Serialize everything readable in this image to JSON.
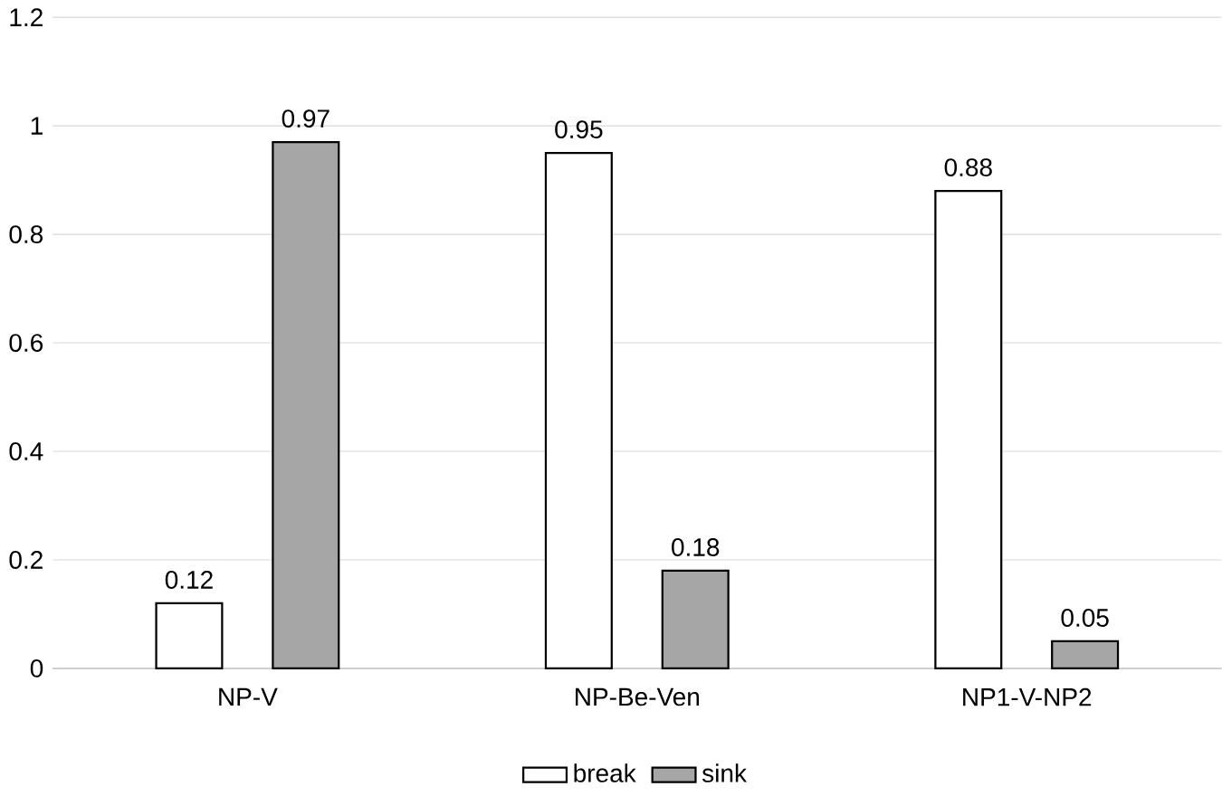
{
  "chart_data": {
    "type": "bar",
    "categories": [
      "NP-V",
      "NP-Be-Ven",
      "NP1-V-NP2"
    ],
    "series": [
      {
        "name": "break",
        "color": "#ffffff",
        "values": [
          0.12,
          0.95,
          0.88
        ]
      },
      {
        "name": "sink",
        "color": "#a6a6a6",
        "values": [
          0.97,
          0.18,
          0.05
        ]
      }
    ],
    "ylim": [
      0,
      1.2
    ],
    "yticks": [
      0,
      0.2,
      0.4,
      0.6,
      0.8,
      1,
      1.2
    ],
    "grid": "y",
    "legend": "bottom",
    "data_labels": true
  }
}
